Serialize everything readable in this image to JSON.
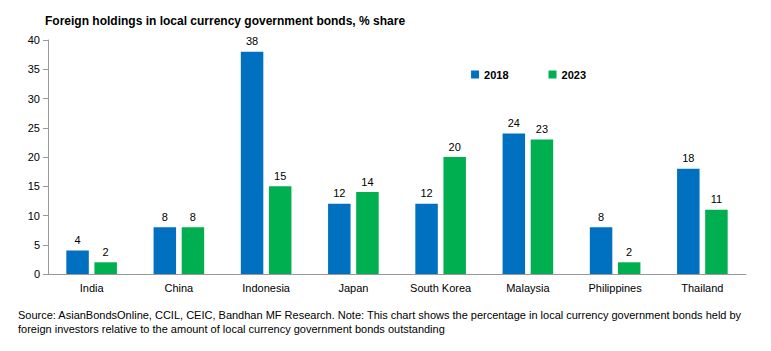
{
  "chart_data": {
    "type": "bar",
    "title": "Foreign holdings in local currency government bonds, % share",
    "caption": "Source: AsianBondsOnline, CCIL, CEIC, Bandhan MF Research. Note: This chart shows the percentage in local currency government bonds held by foreign investors relative to the amount of local currency government bonds outstanding",
    "categories": [
      "India",
      "China",
      "Indonesia",
      "Japan",
      "South Korea",
      "Malaysia",
      "Philippines",
      "Thailand"
    ],
    "series": [
      {
        "name": "2018",
        "color": "#0070c0",
        "values": [
          4,
          8,
          38,
          12,
          12,
          24,
          8,
          18
        ]
      },
      {
        "name": "2023",
        "color": "#00b050",
        "values": [
          2,
          8,
          15,
          14,
          20,
          23,
          2,
          11
        ]
      }
    ],
    "ylim": [
      0,
      40
    ],
    "yticks": [
      0,
      5,
      10,
      15,
      20,
      25,
      30,
      35,
      40
    ],
    "grid": false,
    "legend": "upper right",
    "data_labels": true
  }
}
